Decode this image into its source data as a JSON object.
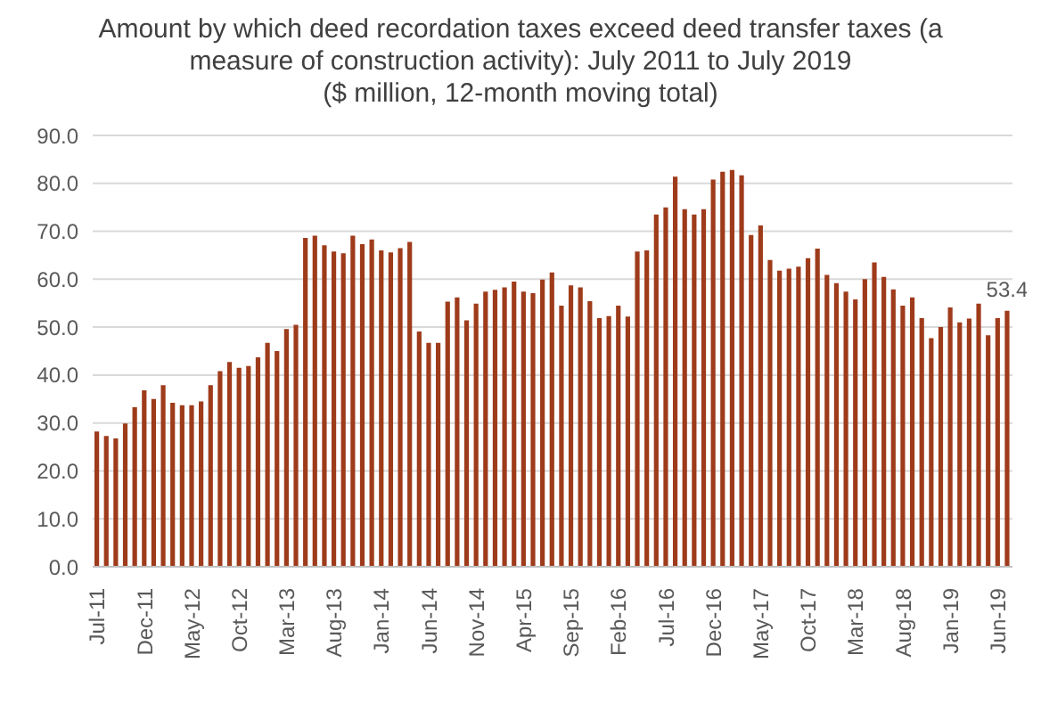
{
  "chart_data": {
    "type": "bar",
    "title": "Amount by which deed recordation taxes exceed deed transfer taxes (a measure of construction activity): July 2011 to July 2019",
    "subtitle": "($ million, 12-month moving total)",
    "categories": [
      "Jul-11",
      null,
      null,
      null,
      null,
      "Dec-11",
      null,
      null,
      null,
      null,
      "May-12",
      null,
      null,
      null,
      null,
      "Oct-12",
      null,
      null,
      null,
      null,
      "Mar-13",
      null,
      null,
      null,
      null,
      "Aug-13",
      null,
      null,
      null,
      null,
      "Jan-14",
      null,
      null,
      null,
      null,
      "Jun-14",
      null,
      null,
      null,
      null,
      "Nov-14",
      null,
      null,
      null,
      null,
      "Apr-15",
      null,
      null,
      null,
      null,
      "Sep-15",
      null,
      null,
      null,
      null,
      "Feb-16",
      null,
      null,
      null,
      null,
      "Jul-16",
      null,
      null,
      null,
      null,
      "Dec-16",
      null,
      null,
      null,
      null,
      "May-17",
      null,
      null,
      null,
      null,
      "Oct-17",
      null,
      null,
      null,
      null,
      "Mar-18",
      null,
      null,
      null,
      null,
      "Aug-18",
      null,
      null,
      null,
      null,
      "Jan-19",
      null,
      null,
      null,
      null,
      "Jun-19",
      null
    ],
    "values": [
      28.2,
      27.3,
      26.8,
      29.9,
      33.3,
      36.8,
      35.0,
      37.9,
      34.2,
      33.7,
      33.7,
      34.5,
      37.9,
      40.8,
      42.7,
      41.5,
      41.9,
      43.7,
      46.7,
      45.0,
      49.6,
      50.5,
      68.6,
      69.1,
      67.1,
      65.8,
      65.4,
      69.1,
      67.3,
      68.3,
      66.0,
      65.6,
      66.5,
      67.8,
      49.1,
      46.7,
      46.7,
      55.3,
      56.2,
      51.4,
      54.9,
      57.4,
      57.8,
      58.3,
      59.5,
      57.4,
      57.1,
      59.9,
      61.4,
      54.5,
      58.7,
      58.3,
      55.4,
      51.9,
      52.3,
      54.5,
      52.2,
      65.8,
      66.0,
      73.5,
      75.0,
      81.4,
      74.6,
      73.5,
      74.6,
      80.8,
      82.4,
      82.8,
      81.7,
      69.2,
      71.2,
      64.0,
      61.8,
      62.2,
      62.6,
      64.4,
      66.4,
      60.9,
      59.2,
      57.4,
      55.8,
      60.0,
      63.5,
      60.5,
      57.9,
      54.5,
      56.2,
      51.9,
      47.7,
      50.0,
      54.1,
      51.0,
      51.8,
      54.9,
      48.3,
      51.9,
      53.4
    ],
    "value_labels": [
      null,
      null,
      null,
      null,
      null,
      null,
      null,
      null,
      null,
      null,
      null,
      null,
      null,
      null,
      null,
      null,
      null,
      null,
      null,
      null,
      null,
      null,
      null,
      null,
      null,
      null,
      null,
      null,
      null,
      null,
      null,
      null,
      null,
      null,
      null,
      null,
      null,
      null,
      null,
      null,
      null,
      null,
      null,
      null,
      null,
      null,
      null,
      null,
      null,
      null,
      null,
      null,
      null,
      null,
      null,
      null,
      null,
      null,
      null,
      null,
      null,
      null,
      null,
      null,
      null,
      null,
      null,
      null,
      null,
      null,
      null,
      null,
      null,
      null,
      null,
      null,
      null,
      null,
      null,
      null,
      null,
      null,
      null,
      null,
      null,
      null,
      null,
      null,
      null,
      null,
      null,
      null,
      null,
      null,
      null,
      null,
      "53.4"
    ],
    "color": "#9e3b1b",
    "ylim": [
      0,
      90
    ],
    "yticks": [
      {
        "value": 0,
        "label": "0.0"
      },
      {
        "value": 10,
        "label": "10.0"
      },
      {
        "value": 20,
        "label": "20.0"
      },
      {
        "value": 30,
        "label": "30.0"
      },
      {
        "value": 40,
        "label": "40.0"
      },
      {
        "value": 50,
        "label": "50.0"
      },
      {
        "value": 60,
        "label": "60.0"
      },
      {
        "value": 70,
        "label": "70.0"
      },
      {
        "value": 80,
        "label": "80.0"
      },
      {
        "value": 90,
        "label": "90.0"
      }
    ],
    "grid": "y"
  }
}
